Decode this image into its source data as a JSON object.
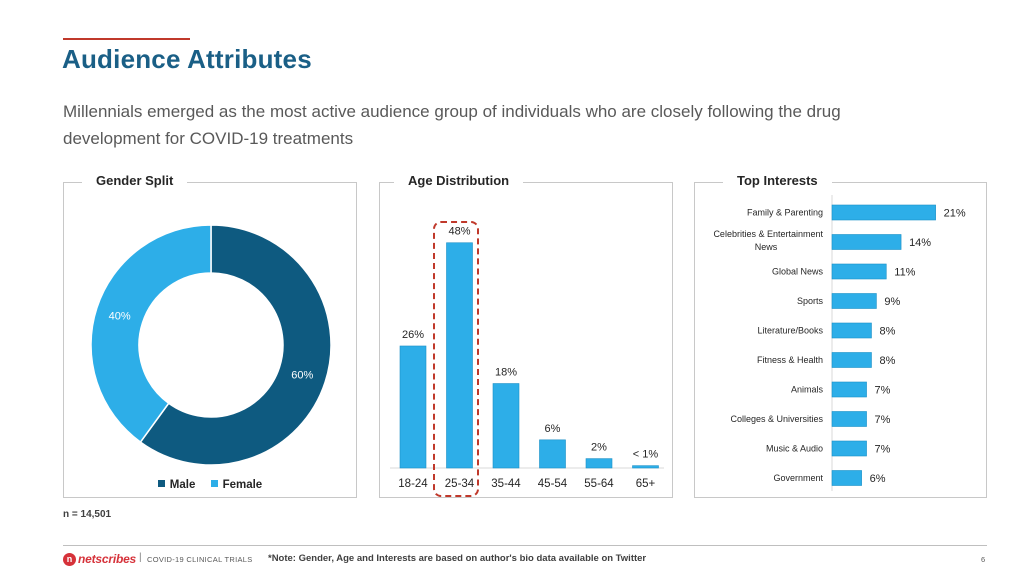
{
  "title": "Audience Attributes",
  "subtitle": "Millennials emerged as the most active audience group of individuals who are closely following the drug development for COVID-19 treatments",
  "colors": {
    "title": "#1a5f86",
    "accent_red": "#c0392b",
    "male": "#0e5a80",
    "female": "#2daee8",
    "bar": "#2daee8",
    "bar_outline": "#1a8fc6"
  },
  "sample_note": "n = 14,501",
  "footer": {
    "logo_text": "netscribes",
    "separator": "|",
    "label": "COVID-19 CLINICAL TRIALS",
    "note": "*Note: Gender, Age and Interests are based on author's bio data available on Twitter",
    "page_number": "6"
  },
  "chart_data": [
    {
      "type": "pie",
      "variant": "donut",
      "title": "Gender Split",
      "categories": [
        "Male",
        "Female"
      ],
      "values": [
        60,
        40
      ],
      "labels": [
        "60%",
        "40%"
      ],
      "legend": [
        "Male",
        "Female"
      ],
      "legend_position": "bottom"
    },
    {
      "type": "bar",
      "title": "Age Distribution",
      "categories": [
        "18-24",
        "25-34",
        "35-44",
        "45-54",
        "55-64",
        "65+"
      ],
      "values": [
        26,
        48,
        18,
        6,
        2,
        0.5
      ],
      "labels": [
        "26%",
        "48%",
        "18%",
        "6%",
        "2%",
        "< 1%"
      ],
      "highlight_category": "25-34",
      "ylim": [
        0,
        52
      ]
    },
    {
      "type": "bar",
      "orientation": "horizontal",
      "title": "Top Interests",
      "categories": [
        "Family & Parenting",
        "Celebrities & Entertainment News",
        "Global News",
        "Sports",
        "Literature/Books",
        "Fitness & Health",
        "Animals",
        "Colleges & Universities",
        "Music & Audio",
        "Government"
      ],
      "values": [
        21,
        14,
        11,
        9,
        8,
        8,
        7,
        7,
        7,
        6
      ],
      "labels": [
        "21%",
        "14%",
        "11%",
        "9%",
        "8%",
        "8%",
        "7%",
        "7%",
        "7%",
        "6%"
      ],
      "xlim": [
        0,
        22
      ]
    }
  ]
}
